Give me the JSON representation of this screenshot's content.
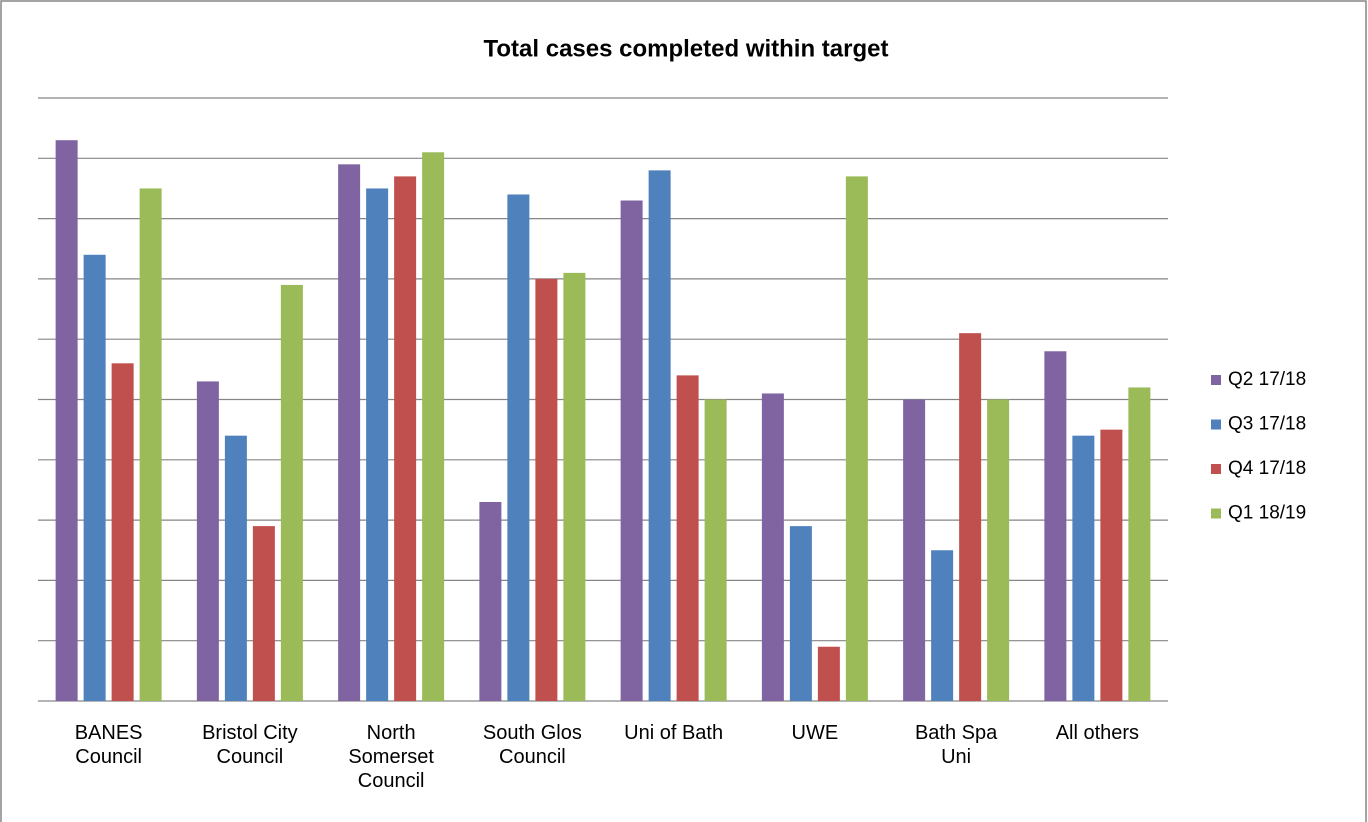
{
  "chart_data": {
    "type": "bar",
    "title": "Total cases completed within target",
    "categories": [
      "BANES Council",
      "Bristol City Council",
      "North Somerset Council",
      "South Glos Council",
      "Uni of Bath",
      "UWE",
      "Bath Spa Uni",
      "All others"
    ],
    "series": [
      {
        "name": "Q2 17/18",
        "color": "#8064a2",
        "values": [
          9.3,
          5.3,
          8.9,
          3.3,
          8.3,
          5.1,
          5.0,
          5.8
        ]
      },
      {
        "name": "Q3 17/18",
        "color": "#4f81bd",
        "values": [
          7.4,
          4.4,
          8.5,
          8.4,
          8.8,
          2.9,
          2.5,
          4.4
        ]
      },
      {
        "name": "Q4 17/18",
        "color": "#c0504d",
        "values": [
          5.6,
          2.9,
          8.7,
          7.0,
          5.4,
          0.9,
          6.1,
          4.5
        ]
      },
      {
        "name": "Q1 18/19",
        "color": "#9bbb59",
        "values": [
          8.5,
          6.9,
          9.1,
          7.1,
          5.0,
          8.7,
          5.0,
          5.2
        ]
      }
    ],
    "ylim": [
      0,
      10
    ],
    "yticks": [
      0,
      1,
      2,
      3,
      4,
      5,
      6,
      7,
      8,
      9,
      10
    ],
    "grid": true,
    "legend": "right"
  }
}
